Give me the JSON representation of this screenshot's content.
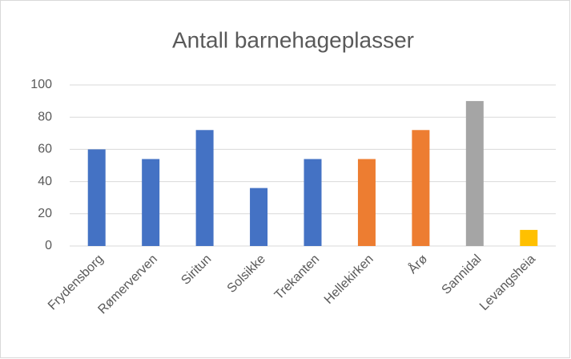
{
  "chart_data": {
    "type": "bar",
    "title": "Antall barnehageplasser",
    "categories": [
      "Frydensborg",
      "Rømerverven",
      "Siritun",
      "Solsikke",
      "Trekanten",
      "Hellekirken",
      "Årø",
      "Sannidal",
      "Levangsheia"
    ],
    "values": [
      60,
      54,
      72,
      36,
      54,
      54,
      72,
      90,
      10
    ],
    "colors": [
      "#4472c4",
      "#4472c4",
      "#4472c4",
      "#4472c4",
      "#4472c4",
      "#ed7d31",
      "#ed7d31",
      "#a5a5a5",
      "#ffc000"
    ],
    "ylim": [
      0,
      100
    ],
    "yticks": [
      0,
      20,
      40,
      60,
      80,
      100
    ],
    "grid": true
  }
}
